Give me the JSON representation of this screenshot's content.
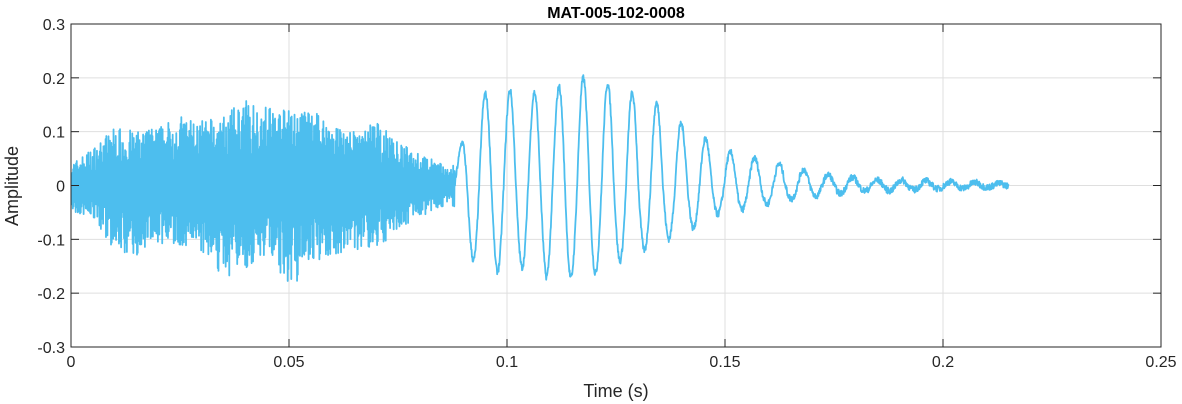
{
  "chart_data": {
    "type": "line",
    "title": "MAT-005-102-0008",
    "xlabel": "Time (s)",
    "ylabel": "Amplitude",
    "xlim": [
      0,
      0.25
    ],
    "ylim": [
      -0.3,
      0.3
    ],
    "xticks": [
      0,
      0.05,
      0.1,
      0.15,
      0.2,
      0.25
    ],
    "xtick_labels": [
      "0",
      "0.05",
      "0.1",
      "0.15",
      "0.2",
      "0.25"
    ],
    "yticks": [
      -0.3,
      -0.2,
      -0.1,
      0,
      0.1,
      0.2,
      0.3
    ],
    "ytick_labels": [
      "-0.3",
      "-0.2",
      "-0.1",
      "0",
      "0.1",
      "0.2",
      "0.3"
    ],
    "grid": true,
    "line_color": "#4DBEEE",
    "series": [
      {
        "x": [
          0,
          0.005,
          0.01,
          0.015,
          0.02,
          0.025,
          0.03,
          0.035,
          0.04,
          0.045,
          0.05,
          0.055,
          0.06,
          0.065,
          0.07,
          0.075,
          0.08,
          0.085,
          0.087,
          0.089,
          0.091,
          0.093,
          0.095,
          0.097,
          0.099,
          0.101,
          0.103,
          0.105,
          0.107,
          0.109,
          0.111,
          0.113,
          0.115,
          0.117,
          0.119,
          0.121,
          0.123,
          0.125,
          0.127,
          0.129,
          0.131,
          0.133,
          0.135,
          0.137,
          0.139,
          0.141,
          0.143,
          0.145,
          0.147,
          0.149,
          0.151,
          0.153,
          0.155,
          0.157,
          0.159,
          0.161,
          0.163,
          0.165,
          0.167,
          0.169,
          0.171,
          0.173,
          0.175,
          0.177,
          0.179,
          0.181,
          0.183,
          0.185,
          0.187,
          0.189,
          0.191,
          0.193,
          0.195,
          0.197,
          0.199,
          0.201,
          0.203,
          0.205,
          0.207,
          0.209,
          0.211,
          0.213,
          0.215
        ],
        "y_max": [
          0.04,
          0.07,
          0.11,
          0.1,
          0.11,
          0.13,
          0.12,
          0.13,
          0.16,
          0.15,
          0.14,
          0.14,
          0.12,
          0.1,
          0.12,
          0.08,
          0.06,
          0.04,
          0.03,
          0.06,
          0.13,
          0.18,
          0.17,
          0.18,
          0.16,
          0.18,
          0.17,
          0.16,
          0.18,
          0.19,
          0.17,
          0.2,
          0.2,
          0.2,
          0.2,
          0.2,
          0.19,
          0.18,
          0.18,
          0.17,
          0.16,
          0.16,
          0.15,
          0.14,
          0.12,
          0.11,
          0.1,
          0.09,
          0.08,
          0.07,
          0.06,
          0.07,
          0.06,
          0.05,
          0.05,
          0.04,
          0.04,
          0.03,
          0.03,
          0.03,
          0.025,
          0.02,
          0.02,
          0.02,
          0.015,
          0.015,
          0.01,
          0.01,
          0.01,
          0.01,
          0.01,
          0.01,
          0.01,
          0.008,
          0.008,
          0.008,
          0.006,
          0.006,
          0.006,
          0.005,
          0.004,
          0.004,
          0.003
        ],
        "y_min": [
          -0.05,
          -0.06,
          -0.12,
          -0.13,
          -0.11,
          -0.12,
          -0.13,
          -0.17,
          -0.16,
          -0.13,
          -0.2,
          -0.15,
          -0.13,
          -0.12,
          -0.12,
          -0.08,
          -0.06,
          -0.04,
          -0.03,
          -0.06,
          -0.12,
          -0.15,
          -0.17,
          -0.16,
          -0.16,
          -0.17,
          -0.15,
          -0.16,
          -0.15,
          -0.17,
          -0.16,
          -0.18,
          -0.17,
          -0.16,
          -0.17,
          -0.16,
          -0.15,
          -0.14,
          -0.14,
          -0.14,
          -0.12,
          -0.12,
          -0.1,
          -0.1,
          -0.09,
          -0.08,
          -0.08,
          -0.07,
          -0.06,
          -0.05,
          -0.05,
          -0.05,
          -0.04,
          -0.04,
          -0.035,
          -0.035,
          -0.03,
          -0.025,
          -0.025,
          -0.02,
          -0.02,
          -0.02,
          -0.015,
          -0.015,
          -0.01,
          -0.01,
          -0.01,
          -0.01,
          -0.01,
          -0.01,
          -0.008,
          -0.008,
          -0.008,
          -0.006,
          -0.006,
          -0.006,
          -0.005,
          -0.005,
          -0.004,
          -0.004,
          -0.003,
          -0.003,
          -0.002
        ]
      }
    ]
  }
}
